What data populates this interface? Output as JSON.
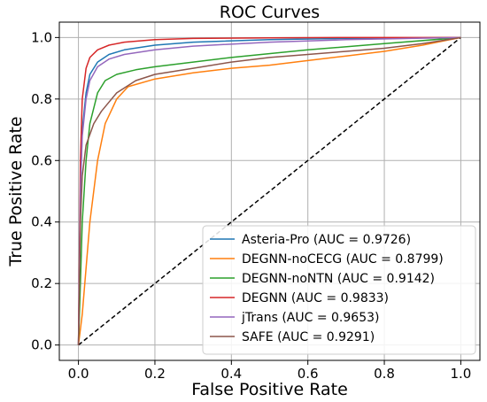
{
  "chart_data": {
    "type": "line",
    "title": "ROC Curves",
    "xlabel": "False Positive Rate",
    "ylabel": "True Positive Rate",
    "xlim": [
      -0.05,
      1.05
    ],
    "ylim": [
      -0.05,
      1.05
    ],
    "x_ticks": [
      "0.0",
      "0.2",
      "0.4",
      "0.6",
      "0.8",
      "1.0"
    ],
    "y_ticks": [
      "0.0",
      "0.2",
      "0.4",
      "0.6",
      "0.8",
      "1.0"
    ],
    "grid": true,
    "legend_position": "bottom-right",
    "series": [
      {
        "name": "Asteria-Pro (AUC = 0.9726)",
        "color": "#1f77b4",
        "x": [
          0,
          0.005,
          0.01,
          0.02,
          0.03,
          0.05,
          0.08,
          0.12,
          0.2,
          0.3,
          0.5,
          0.7,
          0.9,
          1.0
        ],
        "y": [
          0,
          0.5,
          0.7,
          0.82,
          0.88,
          0.92,
          0.945,
          0.96,
          0.975,
          0.985,
          0.993,
          0.997,
          0.999,
          1.0
        ]
      },
      {
        "name": "DEGNN-noCECG (AUC = 0.8799)",
        "color": "#ff7f0e",
        "x": [
          0,
          0.01,
          0.02,
          0.03,
          0.05,
          0.07,
          0.1,
          0.13,
          0.2,
          0.3,
          0.4,
          0.5,
          0.6,
          0.7,
          0.8,
          0.9,
          1.0
        ],
        "y": [
          0,
          0.1,
          0.25,
          0.4,
          0.6,
          0.72,
          0.8,
          0.84,
          0.865,
          0.885,
          0.9,
          0.91,
          0.925,
          0.94,
          0.955,
          0.975,
          1.0
        ]
      },
      {
        "name": "DEGNN-noNTN (AUC = 0.9142)",
        "color": "#2ca02c",
        "x": [
          0,
          0.005,
          0.01,
          0.02,
          0.03,
          0.05,
          0.07,
          0.1,
          0.15,
          0.2,
          0.3,
          0.4,
          0.6,
          0.8,
          1.0
        ],
        "y": [
          0,
          0.2,
          0.4,
          0.6,
          0.72,
          0.82,
          0.86,
          0.88,
          0.895,
          0.905,
          0.92,
          0.935,
          0.96,
          0.98,
          1.0
        ]
      },
      {
        "name": "DEGNN (AUC = 0.9833)",
        "color": "#d62728",
        "x": [
          0,
          0.005,
          0.01,
          0.02,
          0.03,
          0.05,
          0.08,
          0.12,
          0.2,
          0.3,
          0.5,
          0.7,
          1.0
        ],
        "y": [
          0,
          0.6,
          0.8,
          0.9,
          0.935,
          0.96,
          0.975,
          0.985,
          0.993,
          0.997,
          0.999,
          1.0,
          1.0
        ]
      },
      {
        "name": "jTrans (AUC = 0.9653)",
        "color": "#9467bd",
        "x": [
          0,
          0.005,
          0.01,
          0.02,
          0.03,
          0.05,
          0.08,
          0.12,
          0.2,
          0.3,
          0.5,
          0.7,
          0.9,
          1.0
        ],
        "y": [
          0,
          0.5,
          0.68,
          0.8,
          0.86,
          0.905,
          0.93,
          0.945,
          0.96,
          0.972,
          0.985,
          0.993,
          0.998,
          1.0
        ]
      },
      {
        "name": "SAFE (AUC = 0.9291)",
        "color": "#8c564b",
        "x": [
          0,
          0.005,
          0.01,
          0.02,
          0.04,
          0.06,
          0.08,
          0.1,
          0.15,
          0.2,
          0.3,
          0.4,
          0.5,
          0.6,
          0.7,
          0.8,
          0.9,
          1.0
        ],
        "y": [
          0,
          0.4,
          0.55,
          0.65,
          0.72,
          0.76,
          0.79,
          0.82,
          0.86,
          0.88,
          0.9,
          0.92,
          0.935,
          0.945,
          0.955,
          0.965,
          0.98,
          1.0
        ]
      }
    ],
    "reference_line": {
      "style": "dashed",
      "color": "#000000",
      "x": [
        0,
        1
      ],
      "y": [
        0,
        1
      ]
    }
  }
}
